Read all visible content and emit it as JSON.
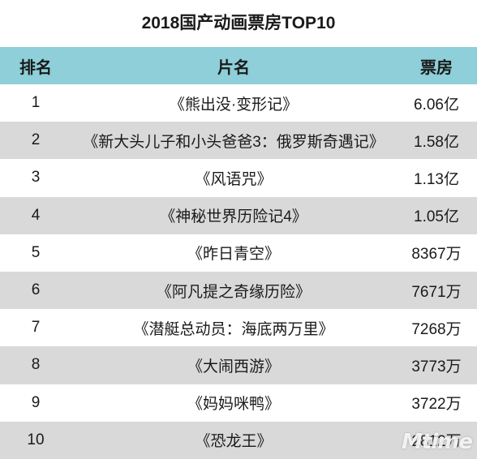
{
  "title": "2018国产动画票房TOP10",
  "header": {
    "rank": "排名",
    "film": "片名",
    "box_office": "票房"
  },
  "rows": [
    {
      "rank": "1",
      "film": "《熊出没·变形记》",
      "box_office": "6.06亿"
    },
    {
      "rank": "2",
      "film": "《新大头儿子和小头爸爸3：俄罗斯奇遇记》",
      "box_office": "1.58亿"
    },
    {
      "rank": "3",
      "film": "《风语咒》",
      "box_office": "1.13亿"
    },
    {
      "rank": "4",
      "film": "《神秘世界历险记4》",
      "box_office": "1.05亿"
    },
    {
      "rank": "5",
      "film": "《昨日青空》",
      "box_office": "8367万"
    },
    {
      "rank": "6",
      "film": "《阿凡提之奇缘历险》",
      "box_office": "7671万"
    },
    {
      "rank": "7",
      "film": "《潜艇总动员：海底两万里》",
      "box_office": "7268万"
    },
    {
      "rank": "8",
      "film": "《大闹西游》",
      "box_office": "3773万"
    },
    {
      "rank": "9",
      "film": "《妈妈咪鸭》",
      "box_office": "3722万"
    },
    {
      "rank": "10",
      "film": "《恐龙王》",
      "box_office": "2812万"
    }
  ],
  "watermark": "Mtime",
  "colors": {
    "header_bg": "#8ecfd9",
    "alt_row_bg": "#d9d9d9"
  }
}
